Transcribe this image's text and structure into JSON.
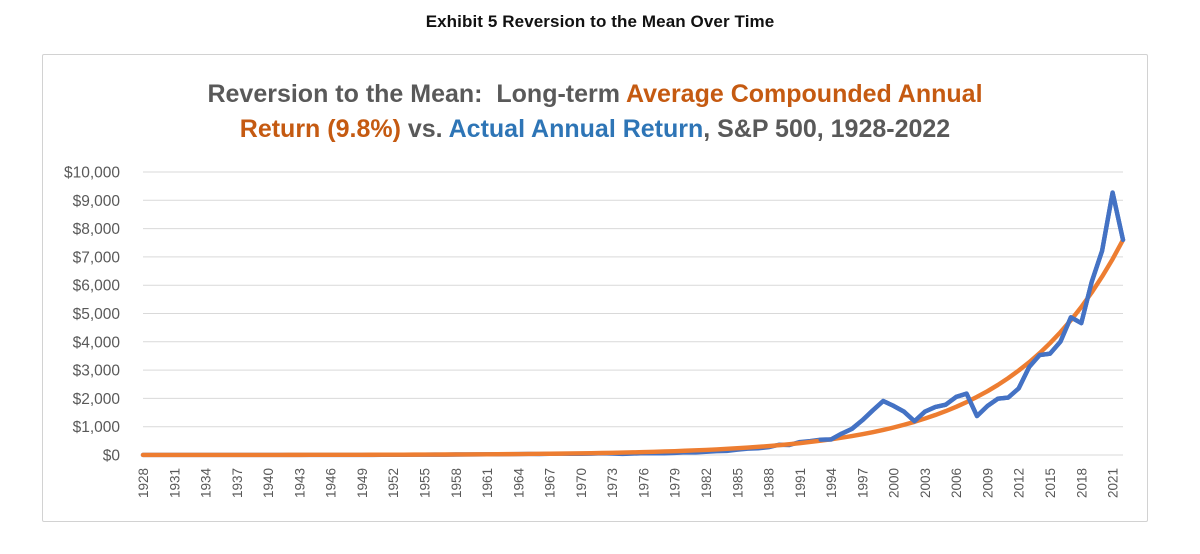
{
  "page": {
    "exhibit_title": "Exhibit 5 Reversion to the Mean Over Time"
  },
  "palette": {
    "title_gray": "#595959",
    "title_orange": "#c55a11",
    "title_blue": "#2e75b6",
    "axis_text": "#595959",
    "gridline": "#d9d9d9",
    "card_border": "#d2d2d2",
    "line_blue": "#4472c4",
    "line_orange": "#ed7d31"
  },
  "chart_data": {
    "type": "line",
    "title_lines": [
      {
        "parts": [
          {
            "text": "Reversion to the Mean:  Long-term ",
            "color": "gray"
          },
          {
            "text": "Average Compounded Annual",
            "color": "orange"
          }
        ]
      },
      {
        "parts": [
          {
            "text": "Return (9.8%)",
            "color": "orange"
          },
          {
            "text": " vs. ",
            "color": "gray"
          },
          {
            "text": "Actual Annual Return",
            "color": "blue"
          },
          {
            "text": ", S&P 500, 1928-2022",
            "color": "gray"
          }
        ]
      }
    ],
    "xlabel": "",
    "ylabel": "",
    "xlim": [
      1928,
      2022
    ],
    "ylim": [
      0,
      10000
    ],
    "grid": "horizontal",
    "legend": "none",
    "y_tick_labels": [
      "$10,000",
      "$9,000",
      "$8,000",
      "$7,000",
      "$6,000",
      "$5,000",
      "$4,000",
      "$3,000",
      "$2,000",
      "$1,000",
      "$0"
    ],
    "x_tick_labels": [
      "1928",
      "1931",
      "1934",
      "1937",
      "1940",
      "1943",
      "1946",
      "1949",
      "1952",
      "1955",
      "1958",
      "1961",
      "1964",
      "1967",
      "1970",
      "1973",
      "1976",
      "1979",
      "1982",
      "1985",
      "1988",
      "1991",
      "1994",
      "1997",
      "2000",
      "2003",
      "2006",
      "2009",
      "2012",
      "2015",
      "2018",
      "2021"
    ],
    "x": [
      1928,
      1929,
      1930,
      1931,
      1932,
      1933,
      1934,
      1935,
      1936,
      1937,
      1938,
      1939,
      1940,
      1941,
      1942,
      1943,
      1944,
      1945,
      1946,
      1947,
      1948,
      1949,
      1950,
      1951,
      1952,
      1953,
      1954,
      1955,
      1956,
      1957,
      1958,
      1959,
      1960,
      1961,
      1962,
      1963,
      1964,
      1965,
      1966,
      1967,
      1968,
      1969,
      1970,
      1971,
      1972,
      1973,
      1974,
      1975,
      1976,
      1977,
      1978,
      1979,
      1980,
      1981,
      1982,
      1983,
      1984,
      1985,
      1986,
      1987,
      1988,
      1989,
      1990,
      1991,
      1992,
      1993,
      1994,
      1995,
      1996,
      1997,
      1998,
      1999,
      2000,
      2001,
      2002,
      2003,
      2004,
      2005,
      2006,
      2007,
      2008,
      2009,
      2010,
      2011,
      2012,
      2013,
      2014,
      2015,
      2016,
      2017,
      2018,
      2019,
      2020,
      2021,
      2022
    ],
    "series": [
      {
        "name": "Average Compounded Annual Return (9.8%)",
        "color": "#ed7d31",
        "values": [
          1.2,
          1.3,
          1.4,
          1.5,
          1.7,
          1.9,
          2.0,
          2.2,
          2.4,
          2.7,
          3.0,
          3.2,
          3.6,
          3.9,
          4.3,
          4.7,
          5.2,
          5.7,
          6.2,
          6.9,
          7.5,
          8.3,
          9.1,
          10.0,
          10.9,
          12.0,
          13.2,
          14.5,
          15.9,
          17.4,
          19.2,
          21.0,
          23.1,
          25.4,
          27.8,
          30.6,
          33.6,
          36.9,
          40.5,
          44.4,
          48.8,
          53.6,
          58.8,
          64.6,
          70.9,
          77.9,
          85.5,
          93.9,
          103.1,
          113.2,
          124.3,
          136.5,
          149.8,
          164.5,
          180.7,
          198.4,
          217.8,
          239.2,
          262.6,
          288.3,
          316.6,
          347.6,
          381.6,
          419.1,
          460.1,
          505.2,
          554.7,
          609.1,
          668.8,
          734.3,
          806.3,
          885.3,
          972,
          1067,
          1172,
          1287,
          1413,
          1551,
          1703,
          1870,
          2054,
          2255,
          2476,
          2718,
          2985,
          3277,
          3598,
          3951,
          4338,
          4763,
          5230,
          5742,
          6305,
          6923,
          7602
        ]
      },
      {
        "name": "Actual Annual Return",
        "color": "#4472c4",
        "values": [
          1.7,
          1.6,
          1.2,
          0.7,
          0.6,
          0.9,
          0.9,
          1.3,
          1.8,
          1.1,
          1.5,
          1.5,
          1.3,
          1.1,
          1.4,
          1.7,
          2.0,
          2.7,
          2.5,
          2.6,
          2.8,
          3.3,
          4.3,
          5.3,
          6.3,
          6.2,
          9.5,
          12.6,
          13.6,
          12.2,
          17.5,
          19.6,
          19.6,
          24.9,
          22.7,
          27.8,
          32.4,
          36.4,
          32.8,
          40.6,
          44.9,
          41.2,
          42.7,
          48.8,
          57.9,
          49.6,
          36.8,
          50.4,
          62.4,
          58.1,
          61.8,
          73.3,
          96.5,
          92.0,
          110.8,
          135.6,
          143.9,
          188.8,
          223.7,
          236.8,
          275.9,
          362.7,
          351.7,
          457.9,
          492.2,
          541.4,
          548.5,
          752.6,
          923.3,
          1229,
          1577,
          1907,
          1735,
          1529,
          1193,
          1531,
          1696,
          1778,
          2055,
          2168,
          1376,
          1733,
          1989,
          2031,
          2354,
          3111,
          3531,
          3580,
          4002,
          4866,
          4660,
          6115,
          7217,
          9272,
          7602
        ]
      }
    ]
  }
}
